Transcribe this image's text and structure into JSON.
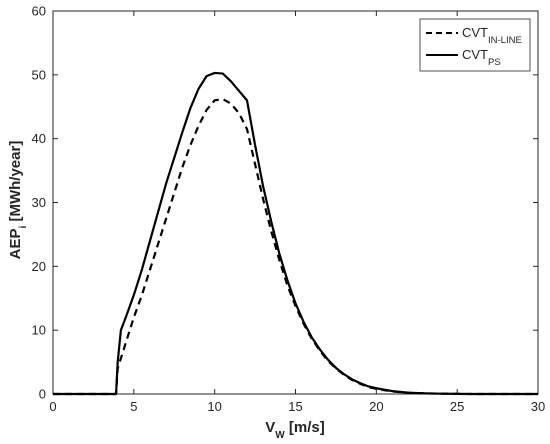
{
  "chart_data": {
    "type": "line",
    "xlabel": {
      "main": "V",
      "sub": "W",
      "unit": " [m/s]"
    },
    "ylabel": {
      "main": "AEP",
      "sub": "i",
      "unit": " [MWh/year]"
    },
    "xlim": [
      0,
      30
    ],
    "ylim": [
      0,
      60
    ],
    "xticks": [
      0,
      5,
      10,
      15,
      20,
      25,
      30
    ],
    "yticks": [
      0,
      10,
      20,
      30,
      40,
      50,
      60
    ],
    "grid": false,
    "legend_position": "top-right",
    "series": [
      {
        "name_main": "CVT",
        "name_sub": "IN-LINE",
        "style": "dashed",
        "x": [
          0,
          3.9,
          4.0,
          4.5,
          5,
          5.5,
          6,
          6.5,
          7,
          7.5,
          8,
          8.5,
          9,
          9.5,
          10,
          10.5,
          11,
          11.5,
          12,
          12.5,
          13,
          13.5,
          14,
          14.5,
          15,
          15.5,
          16,
          16.5,
          17,
          17.5,
          18,
          18.5,
          19,
          19.5,
          20,
          21,
          22,
          23,
          24,
          25,
          26,
          30
        ],
        "y": [
          0,
          0,
          4,
          8,
          12,
          15.5,
          19.5,
          23.5,
          27.5,
          31.5,
          35.5,
          39,
          42,
          44.5,
          46,
          46.2,
          45.5,
          44,
          41.5,
          36,
          30.5,
          25.5,
          21,
          17,
          13.8,
          11,
          8.7,
          6.8,
          5.2,
          4.0,
          3.0,
          2.2,
          1.6,
          1.1,
          0.8,
          0.4,
          0.2,
          0.1,
          0.05,
          0.02,
          0,
          0
        ]
      },
      {
        "name_main": "CVT",
        "name_sub": "PS",
        "style": "solid",
        "x": [
          0,
          3.9,
          4.0,
          4.2,
          4.5,
          5,
          5.5,
          6,
          6.5,
          7,
          7.5,
          8,
          8.5,
          9,
          9.5,
          10,
          10.5,
          11,
          11.5,
          12,
          12.5,
          13,
          13.5,
          14,
          14.5,
          15,
          15.5,
          16,
          16.5,
          17,
          17.5,
          18,
          18.5,
          19,
          19.5,
          20,
          21,
          22,
          23,
          24,
          25,
          26,
          30
        ],
        "y": [
          0,
          0,
          5,
          10,
          12,
          15.5,
          19.5,
          24,
          28.5,
          33,
          37,
          41,
          44.8,
          47.8,
          49.8,
          50.3,
          50.2,
          49,
          47.5,
          46,
          39,
          32.5,
          27,
          22,
          17.8,
          14.2,
          11.3,
          8.9,
          7.0,
          5.4,
          4.1,
          3.1,
          2.3,
          1.7,
          1.2,
          0.9,
          0.45,
          0.2,
          0.1,
          0.05,
          0.02,
          0,
          0
        ]
      }
    ]
  }
}
